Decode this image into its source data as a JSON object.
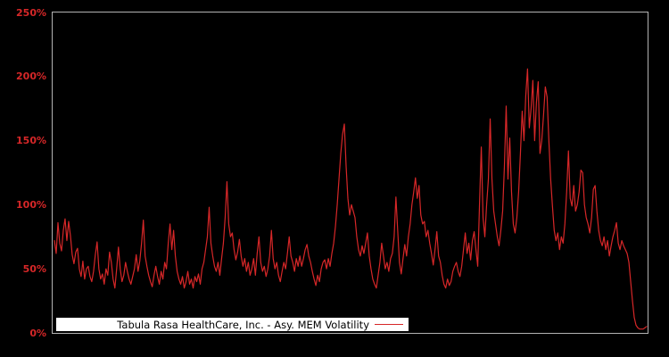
{
  "chart_data": {
    "type": "line",
    "title": "",
    "legend_label": "Tabula Rasa HealthCare, Inc. - Asy. MEM Volatility",
    "legend_position": "bottom-left inside plot",
    "background_color": "#000000",
    "line_color": "#d62728",
    "axis_label_color": "#d62728",
    "frame_color": "#b3b3b3",
    "legend_bg_color": "#ffffff",
    "xlabel": "",
    "ylabel": "",
    "xticks": [],
    "grid": false,
    "ylim": [
      0,
      250
    ],
    "yticks": [
      {
        "value": 0,
        "label": "0%"
      },
      {
        "value": 50,
        "label": "50%"
      },
      {
        "value": 100,
        "label": "100%"
      },
      {
        "value": 150,
        "label": "150%"
      },
      {
        "value": 200,
        "label": "200%"
      },
      {
        "value": 250,
        "label": "250%"
      }
    ],
    "y_unit": "percent",
    "values": [
      72,
      62,
      86,
      70,
      64,
      80,
      89,
      72,
      87,
      76,
      61,
      54,
      63,
      66,
      50,
      44,
      56,
      42,
      50,
      52,
      44,
      40,
      48,
      61,
      71,
      50,
      42,
      46,
      38,
      50,
      45,
      63,
      55,
      42,
      35,
      50,
      67,
      50,
      40,
      45,
      55,
      48,
      42,
      38,
      44,
      50,
      61,
      48,
      56,
      70,
      88,
      60,
      52,
      45,
      40,
      36,
      45,
      52,
      44,
      38,
      48,
      42,
      55,
      50,
      70,
      85,
      65,
      80,
      60,
      48,
      42,
      38,
      44,
      35,
      40,
      48,
      38,
      42,
      35,
      44,
      40,
      46,
      38,
      50,
      55,
      65,
      75,
      98,
      70,
      60,
      52,
      48,
      55,
      45,
      58,
      70,
      90,
      118,
      85,
      75,
      78,
      65,
      57,
      63,
      73,
      60,
      52,
      58,
      48,
      55,
      45,
      50,
      58,
      45,
      62,
      75,
      55,
      48,
      52,
      44,
      50,
      60,
      80,
      58,
      50,
      55,
      45,
      40,
      48,
      55,
      50,
      62,
      75,
      60,
      55,
      48,
      58,
      52,
      60,
      52,
      58,
      65,
      69,
      60,
      55,
      48,
      42,
      37,
      45,
      40,
      50,
      55,
      57,
      50,
      58,
      52,
      62,
      70,
      83,
      100,
      120,
      140,
      155,
      163,
      130,
      105,
      92,
      100,
      95,
      90,
      75,
      65,
      60,
      68,
      62,
      70,
      78,
      60,
      50,
      42,
      38,
      35,
      45,
      55,
      70,
      60,
      50,
      55,
      48,
      58,
      62,
      75,
      106,
      80,
      55,
      46,
      58,
      69,
      60,
      75,
      85,
      100,
      110,
      121,
      105,
      115,
      92,
      85,
      87,
      75,
      80,
      70,
      62,
      53,
      65,
      79,
      60,
      55,
      45,
      38,
      35,
      42,
      37,
      40,
      48,
      52,
      55,
      48,
      44,
      52,
      65,
      78,
      62,
      70,
      57,
      72,
      79,
      65,
      52,
      100,
      145,
      90,
      75,
      100,
      120,
      167,
      120,
      95,
      85,
      75,
      68,
      80,
      95,
      130,
      177,
      120,
      152,
      110,
      85,
      78,
      90,
      110,
      140,
      173,
      150,
      185,
      206,
      160,
      175,
      197,
      150,
      180,
      196,
      140,
      150,
      170,
      192,
      184,
      150,
      120,
      99,
      80,
      72,
      78,
      65,
      75,
      70,
      85,
      110,
      142,
      105,
      99,
      115,
      95,
      100,
      110,
      127,
      125,
      100,
      90,
      85,
      78,
      90,
      112,
      115,
      95,
      80,
      72,
      68,
      75,
      65,
      72,
      60,
      68,
      75,
      80,
      86,
      70,
      65,
      72,
      68,
      65,
      62,
      55,
      40,
      25,
      12,
      6,
      4,
      3,
      3,
      3,
      4,
      5
    ]
  }
}
